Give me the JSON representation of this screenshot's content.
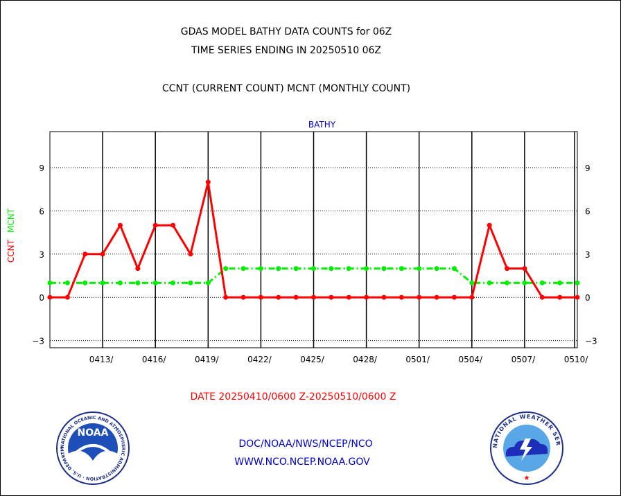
{
  "header": {
    "title_line1": "GDAS MODEL BATHY DATA COUNTS for 06Z",
    "title_line2": "TIME SERIES ENDING IN 20250510 06Z",
    "subtitle": "CCNT (CURRENT COUNT) MCNT (MONTHLY COUNT)"
  },
  "footer": {
    "date_range": "DATE 20250410/0600 Z-20250510/0600 Z",
    "org_line": "DOC/NOAA/NWS/NCEP/NCO",
    "web_line": "WWW.NCO.NCEP.NOAA.GOV"
  },
  "logos": {
    "left_text": "NOAA",
    "left_ring": "NATIONAL OCEANIC AND ATMOSPHERIC ADMINISTRATION · U.S. DEPARTMENT OF COMMERCE",
    "right_ring": "NATIONAL WEATHER SERVICE"
  },
  "colors": {
    "ccnt": "#ff0000",
    "mcnt": "#00ee00",
    "panel_title": "#0000cc",
    "footer_blue": "#0000cc",
    "date_red": "#ff0000"
  },
  "chart_data": {
    "type": "line",
    "title": "BATHY",
    "ylabel_series": [
      "CCNT",
      "MCNT"
    ],
    "ylim": [
      -3.5,
      11.5
    ],
    "yticks": [
      -3,
      0,
      3,
      6,
      9
    ],
    "ytick_labels": [
      "−3",
      "0",
      "3",
      "6",
      "9"
    ],
    "xticks": [
      "0413/",
      "0416/",
      "0419/",
      "0422/",
      "0425/",
      "0428/",
      "0501/",
      "0504/",
      "0507/",
      "0510/"
    ],
    "grid": true,
    "x": [
      "0410",
      "0411",
      "0412",
      "0413",
      "0414",
      "0415",
      "0416",
      "0417",
      "0418",
      "0419",
      "0420",
      "0421",
      "0422",
      "0423",
      "0424",
      "0425",
      "0426",
      "0427",
      "0428",
      "0429",
      "0430",
      "0501",
      "0502",
      "0503",
      "0504",
      "0505",
      "0506",
      "0507",
      "0508",
      "0509",
      "0510"
    ],
    "series": [
      {
        "name": "CCNT",
        "values": [
          0,
          0,
          3,
          3,
          5,
          2,
          5,
          5,
          3,
          8,
          0,
          0,
          0,
          0,
          0,
          0,
          0,
          0,
          0,
          0,
          0,
          0,
          0,
          0,
          0,
          5,
          2,
          2,
          0,
          0,
          0
        ]
      },
      {
        "name": "MCNT",
        "values": [
          1,
          1,
          1,
          1,
          1,
          1,
          1,
          1,
          1,
          1,
          2,
          2,
          2,
          2,
          2,
          2,
          2,
          2,
          2,
          2,
          2,
          2,
          2,
          2,
          1,
          1,
          1,
          1,
          1,
          1,
          1
        ]
      }
    ]
  }
}
